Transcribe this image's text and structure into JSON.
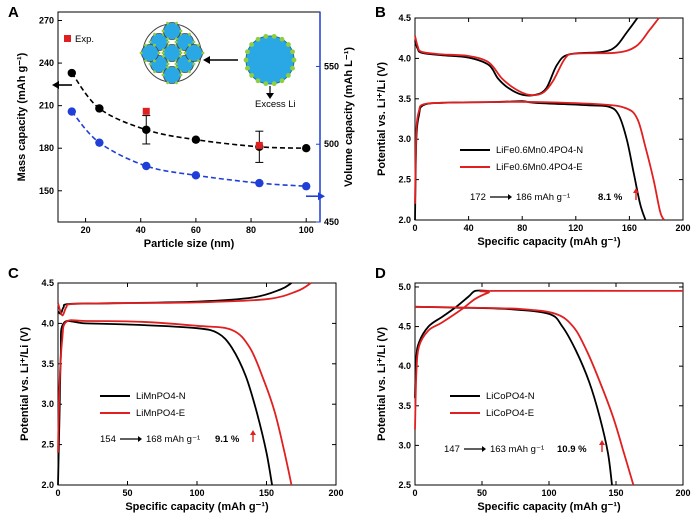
{
  "chart_data": [
    {
      "panel": "A",
      "type": "scatter",
      "xlabel": "Particle size (nm)",
      "ylabel": "Mass capacity (mAh g⁻¹)",
      "y2label": "Volume capacity (mAh L⁻¹)",
      "xlim": [
        10,
        105
      ],
      "ylim": [
        128,
        276
      ],
      "y2lim": [
        450,
        585
      ],
      "xticks": [
        20,
        40,
        60,
        80,
        100
      ],
      "yticks": [
        150,
        180,
        210,
        240,
        270
      ],
      "y2ticks": [
        450,
        500,
        550
      ],
      "legend": "top-left",
      "legend_label": "Exp.",
      "inset_label": "Excess Li",
      "series": [
        {
          "axis": "left",
          "color": "#000000",
          "style": "dashed-fit",
          "x": [
            15,
            25,
            42,
            60,
            83,
            100
          ],
          "values": [
            233,
            208,
            193,
            186,
            181,
            180
          ],
          "error": [
            0,
            0,
            10,
            0,
            11,
            0
          ]
        },
        {
          "axis": "right",
          "color": "#1f3fd6",
          "style": "dashed-fit",
          "x": [
            15,
            25,
            42,
            60,
            83,
            100
          ],
          "values": [
            521,
            501,
            486,
            480,
            475,
            473
          ]
        },
        {
          "axis": "left",
          "color": "#e02020",
          "marker": "square",
          "x": [
            42,
            83
          ],
          "values": [
            206,
            182
          ]
        }
      ],
      "colors": {
        "black": "#000000",
        "blue": "#1f3fd6",
        "red": "#e02020",
        "li_particle": "#2aa8e6",
        "li_excess": "#8fcf3f"
      }
    },
    {
      "panel": "B",
      "type": "line",
      "xlabel": "Specific capacity (mAh g⁻¹)",
      "ylabel": "Potential vs. Li⁺/Li (V)",
      "xlim": [
        0,
        200
      ],
      "ylim": [
        2.0,
        4.5
      ],
      "xticks": [
        0,
        40,
        80,
        120,
        160,
        200
      ],
      "yticks": [
        2.0,
        2.5,
        3.0,
        3.5,
        4.0,
        4.5
      ],
      "legend": "center",
      "series": [
        {
          "name": "LiFe0.6Mn0.4PO4-N",
          "color": "#000000",
          "charge": [
            [
              0,
              4.22
            ],
            [
              2,
              4.12
            ],
            [
              5,
              4.07
            ],
            [
              20,
              4.04
            ],
            [
              40,
              4.01
            ],
            [
              55,
              3.92
            ],
            [
              62,
              3.75
            ],
            [
              70,
              3.63
            ],
            [
              80,
              3.55
            ],
            [
              90,
              3.55
            ],
            [
              98,
              3.63
            ],
            [
              106,
              3.92
            ],
            [
              115,
              4.05
            ],
            [
              140,
              4.08
            ],
            [
              150,
              4.15
            ],
            [
              158,
              4.32
            ],
            [
              166,
              4.5
            ]
          ],
          "discharge": [
            [
              0,
              2.0
            ],
            [
              1,
              3.0
            ],
            [
              3,
              3.3
            ],
            [
              6,
              3.42
            ],
            [
              20,
              3.45
            ],
            [
              60,
              3.46
            ],
            [
              80,
              3.47
            ],
            [
              90,
              3.45
            ],
            [
              130,
              3.42
            ],
            [
              145,
              3.4
            ],
            [
              152,
              3.3
            ],
            [
              158,
              3.0
            ],
            [
              163,
              2.6
            ],
            [
              168,
              2.2
            ],
            [
              172,
              2.0
            ]
          ]
        },
        {
          "name": "LiFe0.6Mn0.4PO4-E",
          "color": "#e02020",
          "charge": [
            [
              0,
              4.28
            ],
            [
              2,
              4.15
            ],
            [
              5,
              4.08
            ],
            [
              20,
              4.05
            ],
            [
              40,
              4.03
            ],
            [
              55,
              3.95
            ],
            [
              65,
              3.75
            ],
            [
              75,
              3.62
            ],
            [
              85,
              3.55
            ],
            [
              95,
              3.57
            ],
            [
              103,
              3.72
            ],
            [
              112,
              4.0
            ],
            [
              120,
              4.06
            ],
            [
              150,
              4.07
            ],
            [
              165,
              4.15
            ],
            [
              175,
              4.35
            ],
            [
              182,
              4.5
            ]
          ],
          "discharge": [
            [
              0,
              2.2
            ],
            [
              1,
              3.1
            ],
            [
              3,
              3.35
            ],
            [
              6,
              3.43
            ],
            [
              20,
              3.45
            ],
            [
              60,
              3.46
            ],
            [
              90,
              3.46
            ],
            [
              140,
              3.43
            ],
            [
              158,
              3.38
            ],
            [
              166,
              3.25
            ],
            [
              172,
              2.9
            ],
            [
              178,
              2.5
            ],
            [
              183,
              2.1
            ],
            [
              186,
              2.0
            ]
          ]
        }
      ],
      "annotation": {
        "from": "172",
        "to": "186 mAh g⁻¹",
        "gain": "8.1 %"
      }
    },
    {
      "panel": "C",
      "type": "line",
      "xlabel": "Specific capacity (mAh g⁻¹)",
      "ylabel": "Potential vs. Li⁺/Li (V)",
      "xlim": [
        0,
        200
      ],
      "ylim": [
        2.0,
        4.5
      ],
      "xticks": [
        0,
        50,
        100,
        150,
        200
      ],
      "yticks": [
        2.0,
        2.5,
        3.0,
        3.5,
        4.0,
        4.5
      ],
      "legend": "bottom-center",
      "series": [
        {
          "name": "LiMnPO4-N",
          "color": "#000000",
          "charge": [
            [
              0,
              4.15
            ],
            [
              2,
              4.12
            ],
            [
              4,
              4.2
            ],
            [
              8,
              4.24
            ],
            [
              40,
              4.25
            ],
            [
              100,
              4.27
            ],
            [
              140,
              4.32
            ],
            [
              160,
              4.42
            ],
            [
              168,
              4.5
            ]
          ],
          "discharge": [
            [
              0,
              2.0
            ],
            [
              1,
              2.8
            ],
            [
              2,
              3.6
            ],
            [
              4,
              4.0
            ],
            [
              20,
              4.0
            ],
            [
              60,
              3.98
            ],
            [
              100,
              3.94
            ],
            [
              115,
              3.88
            ],
            [
              125,
              3.7
            ],
            [
              135,
              3.35
            ],
            [
              143,
              2.9
            ],
            [
              150,
              2.4
            ],
            [
              154,
              2.0
            ]
          ]
        },
        {
          "name": "LiMnPO4-E",
          "color": "#e02020",
          "charge": [
            [
              0,
              4.25
            ],
            [
              3,
              4.1
            ],
            [
              6,
              4.2
            ],
            [
              10,
              4.24
            ],
            [
              40,
              4.25
            ],
            [
              100,
              4.26
            ],
            [
              150,
              4.3
            ],
            [
              172,
              4.4
            ],
            [
              182,
              4.5
            ]
          ],
          "discharge": [
            [
              0,
              2.4
            ],
            [
              1,
              3.2
            ],
            [
              3,
              3.8
            ],
            [
              6,
              4.02
            ],
            [
              20,
              4.03
            ],
            [
              60,
              4.02
            ],
            [
              100,
              3.97
            ],
            [
              125,
              3.92
            ],
            [
              138,
              3.7
            ],
            [
              148,
              3.3
            ],
            [
              156,
              2.9
            ],
            [
              163,
              2.4
            ],
            [
              168,
              2.0
            ]
          ]
        }
      ],
      "annotation": {
        "from": "154",
        "to": "168 mAh g⁻¹",
        "gain": "9.1 %"
      }
    },
    {
      "panel": "D",
      "type": "line",
      "xlabel": "Specific capacity (mAh g⁻¹)",
      "ylabel": "Potential vs. Li⁺/Li (V)",
      "xlim": [
        0,
        200
      ],
      "ylim": [
        2.5,
        5.05
      ],
      "xticks": [
        0,
        50,
        100,
        150,
        200
      ],
      "yticks": [
        2.5,
        3.0,
        3.5,
        4.0,
        4.5,
        5.0
      ],
      "legend": "bottom-center",
      "series": [
        {
          "name": "LiCoPO4-N",
          "color": "#000000",
          "charge": [
            [
              0,
              3.6
            ],
            [
              1,
              4.1
            ],
            [
              3,
              4.3
            ],
            [
              10,
              4.5
            ],
            [
              20,
              4.62
            ],
            [
              30,
              4.74
            ],
            [
              40,
              4.88
            ],
            [
              45,
              4.95
            ],
            [
              55,
              4.95
            ]
          ],
          "discharge": [
            [
              0,
              4.75
            ],
            [
              30,
              4.74
            ],
            [
              70,
              4.72
            ],
            [
              100,
              4.66
            ],
            [
              110,
              4.5
            ],
            [
              120,
              4.2
            ],
            [
              130,
              3.8
            ],
            [
              138,
              3.35
            ],
            [
              144,
              2.9
            ],
            [
              147,
              2.5
            ]
          ]
        },
        {
          "name": "LiCoPO4-E",
          "color": "#e02020",
          "charge": [
            [
              0,
              3.2
            ],
            [
              1,
              3.9
            ],
            [
              3,
              4.25
            ],
            [
              10,
              4.45
            ],
            [
              20,
              4.55
            ],
            [
              35,
              4.72
            ],
            [
              45,
              4.85
            ],
            [
              55,
              4.93
            ],
            [
              60,
              4.95
            ],
            [
              200,
              4.95
            ]
          ],
          "discharge": [
            [
              0,
              4.75
            ],
            [
              40,
              4.74
            ],
            [
              80,
              4.72
            ],
            [
              105,
              4.66
            ],
            [
              118,
              4.5
            ],
            [
              128,
              4.2
            ],
            [
              138,
              3.8
            ],
            [
              148,
              3.35
            ],
            [
              156,
              2.9
            ],
            [
              163,
              2.5
            ]
          ]
        }
      ],
      "annotation": {
        "from": "147",
        "to": "163 mAh g⁻¹",
        "gain": "10.9 %"
      }
    }
  ]
}
